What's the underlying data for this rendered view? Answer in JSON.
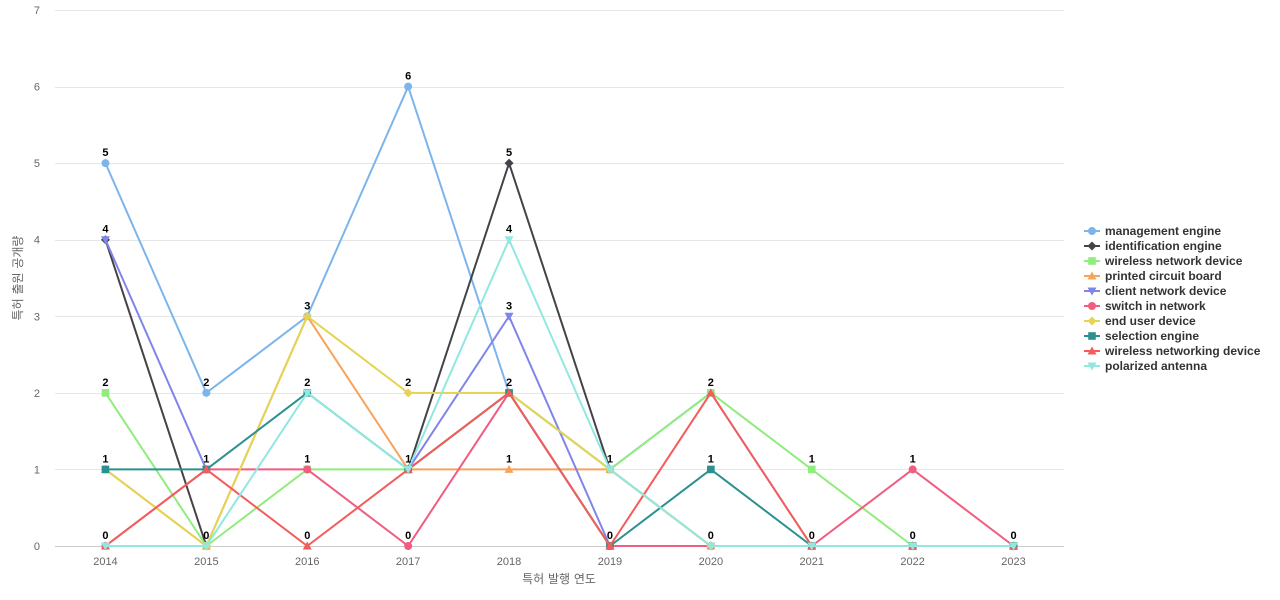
{
  "chart_data": {
    "type": "line",
    "title": "",
    "xlabel": "특허 발행 연도",
    "ylabel": "특허 출원 공개량",
    "x": [
      "2014",
      "2015",
      "2016",
      "2017",
      "2018",
      "2019",
      "2020",
      "2021",
      "2022",
      "2023"
    ],
    "ylim": [
      0,
      7
    ],
    "yticks": [
      0,
      1,
      2,
      3,
      4,
      5,
      6,
      7
    ],
    "grid": true,
    "legend_position": "right",
    "series": [
      {
        "name": "management engine",
        "color": "#7cb5ec",
        "marker": "circle",
        "values": [
          5,
          2,
          3,
          6,
          2,
          1,
          2,
          0,
          0,
          0
        ]
      },
      {
        "name": "identification engine",
        "color": "#434348",
        "marker": "diamond",
        "values": [
          4,
          0,
          null,
          1,
          5,
          1,
          0,
          0,
          0,
          0
        ]
      },
      {
        "name": "wireless network device",
        "color": "#90ed7d",
        "marker": "square",
        "values": [
          2,
          0,
          1,
          1,
          2,
          1,
          2,
          1,
          0,
          0
        ]
      },
      {
        "name": "printed circuit board",
        "color": "#f7a35c",
        "marker": "triangle",
        "values": [
          1,
          0,
          3,
          1,
          1,
          1,
          0,
          0,
          0,
          0
        ]
      },
      {
        "name": "client network device",
        "color": "#8085e9",
        "marker": "triangle-down",
        "values": [
          4,
          1,
          null,
          1,
          3,
          0,
          0,
          0,
          0,
          0
        ]
      },
      {
        "name": "switch in network",
        "color": "#f15c80",
        "marker": "circle",
        "values": [
          0,
          1,
          1,
          0,
          2,
          0,
          0,
          0,
          1,
          0
        ]
      },
      {
        "name": "end user device",
        "color": "#e4d354",
        "marker": "diamond",
        "values": [
          1,
          0,
          3,
          2,
          2,
          1,
          0,
          0,
          0,
          0
        ]
      },
      {
        "name": "selection engine",
        "color": "#2b908f",
        "marker": "square",
        "values": [
          1,
          1,
          2,
          1,
          2,
          0,
          1,
          0,
          0,
          0
        ]
      },
      {
        "name": "wireless networking device",
        "color": "#f45b5b",
        "marker": "triangle",
        "values": [
          0,
          1,
          0,
          1,
          2,
          0,
          2,
          0,
          0,
          0
        ]
      },
      {
        "name": "polarized antenna",
        "color": "#91e8e1",
        "marker": "triangle-down",
        "values": [
          0,
          0,
          2,
          1,
          4,
          1,
          0,
          0,
          0,
          0
        ]
      }
    ],
    "data_labels": [
      {
        "x": "2014",
        "y": 5,
        "text": "5"
      },
      {
        "x": "2014",
        "y": 4,
        "text": "4"
      },
      {
        "x": "2014",
        "y": 2,
        "text": "2"
      },
      {
        "x": "2014",
        "y": 1,
        "text": "1"
      },
      {
        "x": "2014",
        "y": 0,
        "text": "0"
      },
      {
        "x": "2015",
        "y": 2,
        "text": "2"
      },
      {
        "x": "2015",
        "y": 1,
        "text": "1"
      },
      {
        "x": "2015",
        "y": 0,
        "text": "0"
      },
      {
        "x": "2016",
        "y": 3,
        "text": "3"
      },
      {
        "x": "2016",
        "y": 2,
        "text": "2"
      },
      {
        "x": "2016",
        "y": 1,
        "text": "1"
      },
      {
        "x": "2016",
        "y": 0,
        "text": "0"
      },
      {
        "x": "2017",
        "y": 6,
        "text": "6"
      },
      {
        "x": "2017",
        "y": 2,
        "text": "2"
      },
      {
        "x": "2017",
        "y": 1,
        "text": "1"
      },
      {
        "x": "2017",
        "y": 0,
        "text": "0"
      },
      {
        "x": "2018",
        "y": 5,
        "text": "5"
      },
      {
        "x": "2018",
        "y": 4,
        "text": "4"
      },
      {
        "x": "2018",
        "y": 3,
        "text": "3"
      },
      {
        "x": "2018",
        "y": 2,
        "text": "2"
      },
      {
        "x": "2018",
        "y": 1,
        "text": "1"
      },
      {
        "x": "2019",
        "y": 1,
        "text": "1"
      },
      {
        "x": "2019",
        "y": 0,
        "text": "0"
      },
      {
        "x": "2020",
        "y": 2,
        "text": "2"
      },
      {
        "x": "2020",
        "y": 1,
        "text": "1"
      },
      {
        "x": "2020",
        "y": 0,
        "text": "0"
      },
      {
        "x": "2021",
        "y": 1,
        "text": "1"
      },
      {
        "x": "2021",
        "y": 0,
        "text": "0"
      },
      {
        "x": "2022",
        "y": 1,
        "text": "1"
      },
      {
        "x": "2022",
        "y": 0,
        "text": "0"
      },
      {
        "x": "2023",
        "y": 0,
        "text": "0"
      }
    ]
  }
}
